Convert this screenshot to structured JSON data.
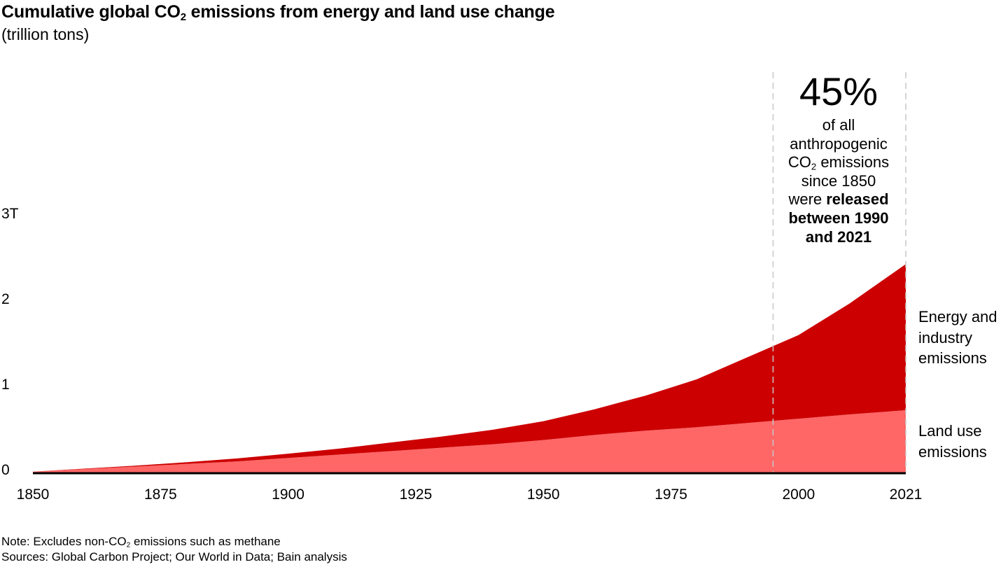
{
  "header": {
    "title_part1": "Cumulative global CO",
    "title_sub": "2",
    "title_part2": " emissions from energy and land use change",
    "subtitle": "(trillion tons)"
  },
  "chart_data": {
    "type": "area",
    "stacked": true,
    "x": [
      1850,
      1860,
      1870,
      1880,
      1890,
      1900,
      1910,
      1920,
      1930,
      1940,
      1950,
      1960,
      1970,
      1980,
      1990,
      2000,
      2010,
      2021
    ],
    "series": [
      {
        "name": "Land use emissions",
        "color": "#ff6666",
        "values": [
          0.01,
          0.04,
          0.07,
          0.1,
          0.13,
          0.17,
          0.21,
          0.25,
          0.29,
          0.33,
          0.38,
          0.44,
          0.49,
          0.53,
          0.58,
          0.63,
          0.68,
          0.73
        ]
      },
      {
        "name": "Energy and industry emissions",
        "color": "#cc0000",
        "values": [
          0.0,
          0.005,
          0.01,
          0.02,
          0.035,
          0.05,
          0.07,
          0.1,
          0.13,
          0.17,
          0.22,
          0.3,
          0.41,
          0.56,
          0.77,
          0.98,
          1.3,
          1.71
        ]
      }
    ],
    "xlim": [
      1850,
      2021
    ],
    "ylim": [
      0,
      3
    ],
    "x_ticks": [
      "1850",
      "1875",
      "1900",
      "1925",
      "1950",
      "1975",
      "2000",
      "2021"
    ],
    "y_ticks": [
      "0",
      "1",
      "2",
      "3T"
    ],
    "grid": false,
    "highlight_range": [
      1995,
      2021
    ],
    "callout": {
      "big": "45%",
      "line1": "of all",
      "line2": "anthropogenic",
      "line3_pre": "CO",
      "line3_sub": "2",
      "line3_post": " emissions",
      "line4": "since 1850",
      "line5_pre": "were ",
      "line5_bold": "released",
      "line6": "between 1990",
      "line7": "and 2021"
    },
    "labels": {
      "energy_line1": "Energy and",
      "energy_line2": "industry",
      "energy_line3": "emissions",
      "land_line1": "Land use",
      "land_line2": "emissions"
    }
  },
  "footer": {
    "note_pre": "Note: Excludes non-CO",
    "note_sub": "2",
    "note_post": "  emissions such as methane",
    "sources": "Sources: Global Carbon Project; Our World in Data; Bain analysis"
  }
}
